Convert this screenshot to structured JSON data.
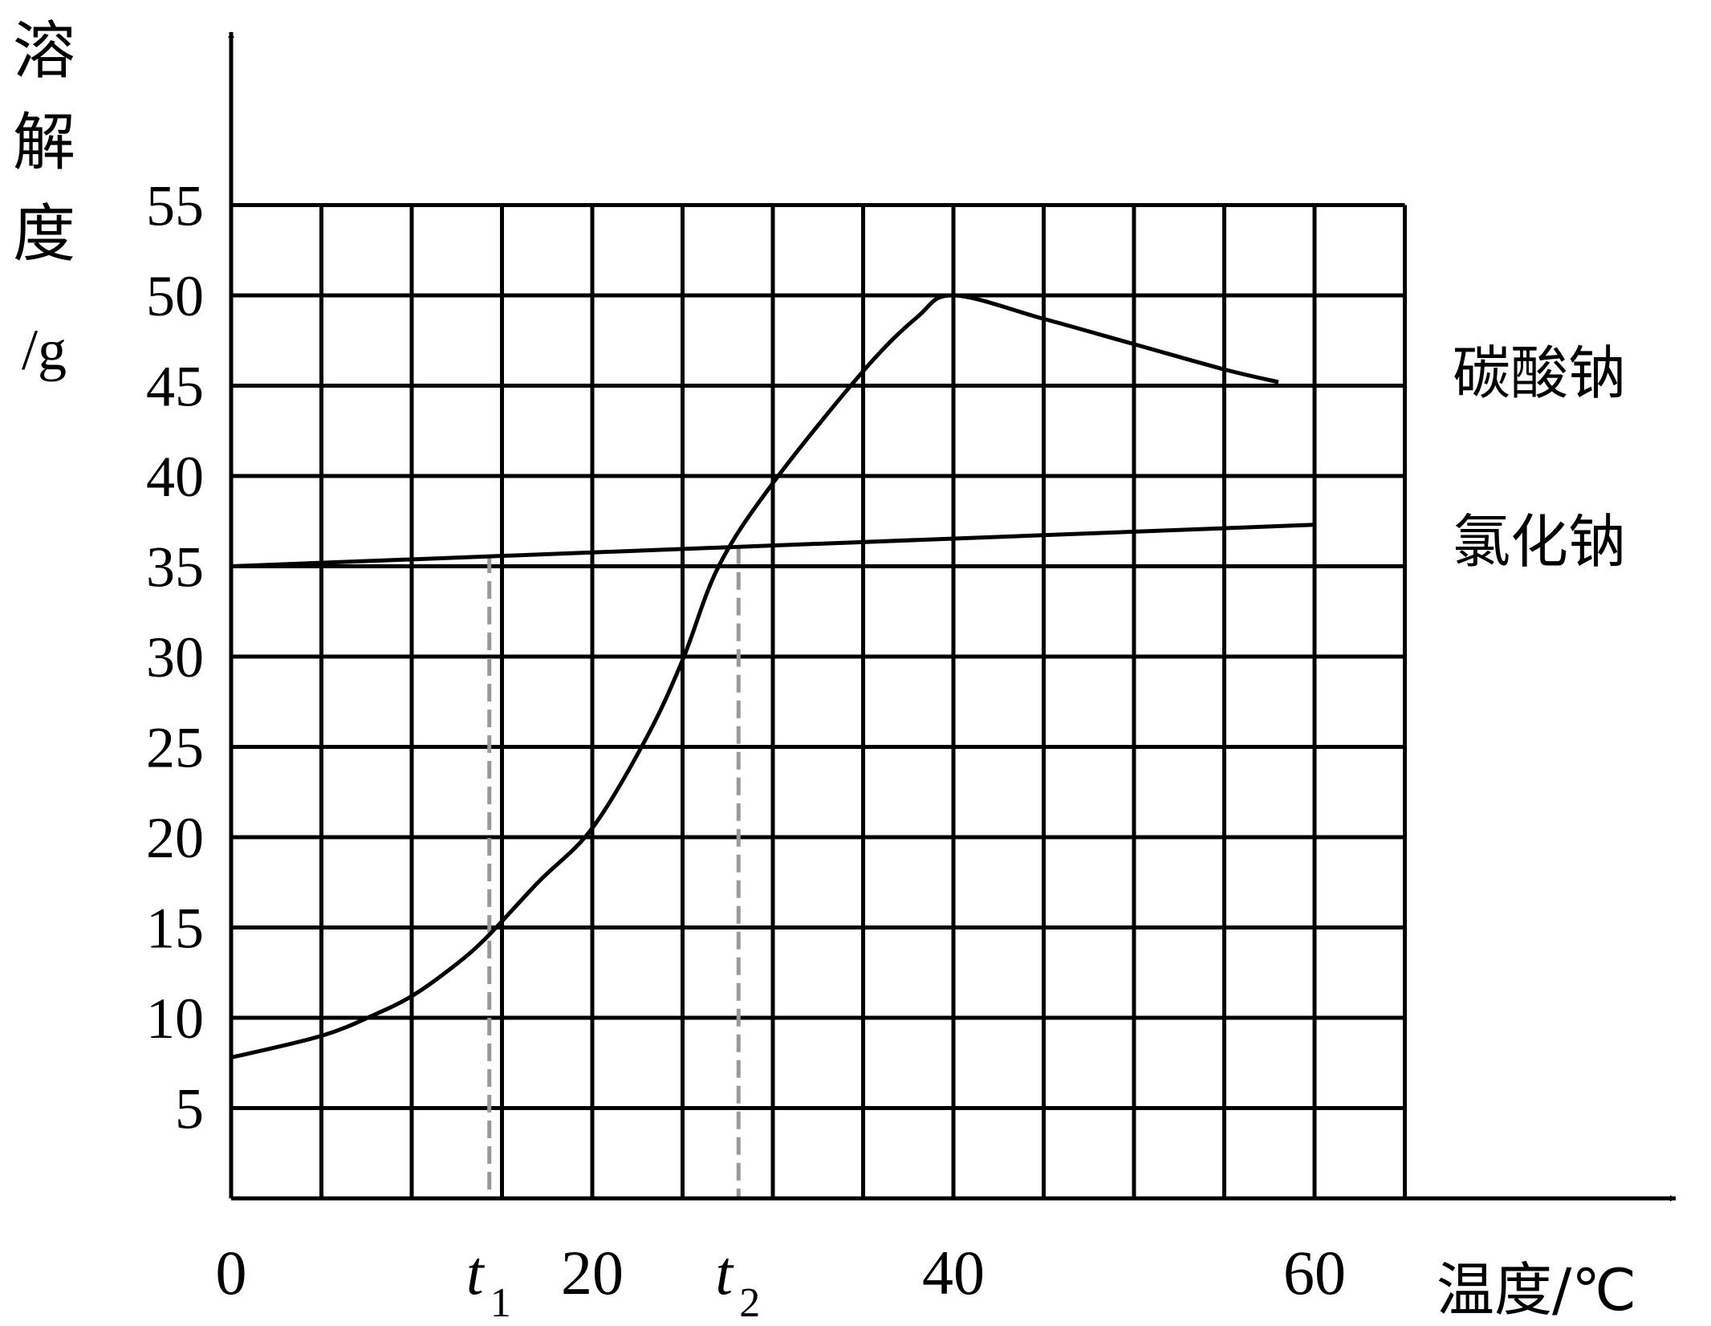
{
  "chart_data": {
    "type": "line",
    "ylabel": "溶解度/g",
    "ylabel_chars": [
      "溶",
      "解",
      "度"
    ],
    "ylabel_unit": "/g",
    "xlabel": "温度/℃",
    "xlim": [
      0,
      65
    ],
    "ylim": [
      0,
      55
    ],
    "x_ticks": [
      {
        "value": 0,
        "label": "0"
      },
      {
        "value": 20,
        "label": "20"
      },
      {
        "value": 40,
        "label": "40"
      },
      {
        "value": 60,
        "label": "60"
      }
    ],
    "y_ticks": [
      {
        "value": 5,
        "label": "5"
      },
      {
        "value": 10,
        "label": "10"
      },
      {
        "value": 15,
        "label": "15"
      },
      {
        "value": 20,
        "label": "20"
      },
      {
        "value": 25,
        "label": "25"
      },
      {
        "value": 30,
        "label": "30"
      },
      {
        "value": 35,
        "label": "35"
      },
      {
        "value": 40,
        "label": "40"
      },
      {
        "value": 45,
        "label": "45"
      },
      {
        "value": 50,
        "label": "50"
      },
      {
        "value": 55,
        "label": "55"
      }
    ],
    "grid": true,
    "series": [
      {
        "name": "碳酸钠",
        "x": [
          0,
          5,
          8,
          10,
          12,
          14,
          17,
          20,
          23,
          25,
          27,
          30,
          35,
          38,
          40,
          45,
          50,
          55,
          58
        ],
        "y": [
          7.8,
          9,
          10.2,
          11.2,
          12.6,
          14.3,
          17.5,
          20.5,
          25.5,
          29.8,
          35,
          39.6,
          45.8,
          48.8,
          50,
          48.7,
          47.3,
          45.9,
          45.2
        ]
      },
      {
        "name": "氯化钠",
        "x": [
          0,
          60
        ],
        "y": [
          35,
          37.3
        ]
      }
    ],
    "annotations": [
      {
        "label": "t",
        "sub": "1",
        "x": 14.3,
        "y": 35.6
      },
      {
        "label": "t",
        "sub": "2",
        "x": 28.1,
        "y": 36.1
      }
    ],
    "colors": {
      "line": "#000000",
      "grid": "#000000",
      "guide": "#999999"
    }
  }
}
